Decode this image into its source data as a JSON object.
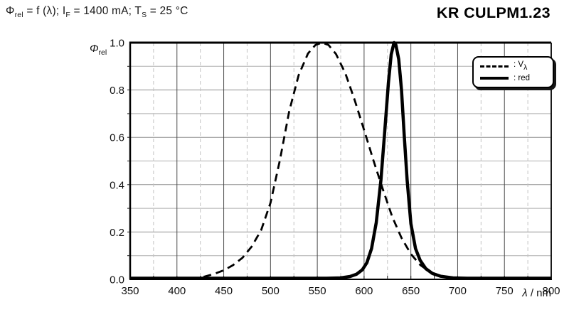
{
  "header": {
    "phi": "Φ",
    "phi_sub": "rel",
    "seg_f": " = f (λ); I",
    "sub_f": "F",
    "seg_if": " = 1400 mA; T",
    "sub_s": "S",
    "seg_ts": " = 25 °C"
  },
  "part_number": "KR CULPM1.23",
  "y_axis": {
    "label_main": "Φ",
    "label_sub": "rel"
  },
  "x_axis": {
    "label_main": "λ",
    "label_rest": " / nm"
  },
  "legend": {
    "vlambda_prefix": ": V",
    "vlambda_sub": "λ",
    "red_label": ": red"
  },
  "colors": {
    "background": "#ffffff",
    "curve": "#000000",
    "border": "#000000",
    "grid_major_vertical": "#4a4a4a",
    "grid_minor_vertical": "#c3c3c3",
    "grid_horizontal": "#9d9d9d",
    "text": "#111111"
  },
  "chart_data": {
    "type": "line",
    "title": "Φ_rel = f (λ); I_F = 1400 mA; T_S = 25 °C",
    "subtitle": "KR CULPM1.23",
    "xlabel": "λ / nm",
    "ylabel": "Φ_rel",
    "xlim": [
      350,
      800
    ],
    "ylim": [
      0,
      1.0
    ],
    "grid": true,
    "legend_position": "top-right",
    "x_major_ticks": [
      350,
      400,
      450,
      500,
      550,
      600,
      650,
      700,
      750,
      800
    ],
    "x_tick_labels": [
      "350",
      "400",
      "450",
      "500",
      "550",
      "600",
      "650",
      "700",
      "750",
      "800"
    ],
    "x_minor_step": 25,
    "y_grid_step": 0.1,
    "y_major_ticks": [
      0,
      0.2,
      0.4,
      0.6,
      0.8,
      1.0
    ],
    "y_tick_labels": [
      "0.0",
      "0.2",
      "0.4",
      "0.6",
      "0.8",
      "1.0"
    ],
    "series": [
      {
        "name": "V_λ",
        "style": "dashed",
        "x": [
          415,
          420,
          430,
          440,
          450,
          460,
          470,
          480,
          490,
          500,
          510,
          520,
          530,
          540,
          548,
          555,
          562,
          570,
          580,
          590,
          600,
          610,
          620,
          630,
          640,
          650,
          660,
          670,
          680,
          690,
          700,
          710,
          720
        ],
        "y": [
          0.002,
          0.004,
          0.012,
          0.023,
          0.038,
          0.06,
          0.091,
          0.139,
          0.208,
          0.323,
          0.503,
          0.71,
          0.862,
          0.954,
          0.99,
          1.0,
          0.99,
          0.952,
          0.87,
          0.757,
          0.631,
          0.503,
          0.381,
          0.265,
          0.175,
          0.107,
          0.061,
          0.032,
          0.017,
          0.008,
          0.004,
          0.002,
          0.001
        ]
      },
      {
        "name": "red",
        "style": "solid",
        "x": [
          350,
          450,
          540,
          560,
          575,
          585,
          592,
          598,
          603,
          608,
          613,
          618,
          622,
          626,
          629,
          632,
          634,
          637,
          640,
          643,
          646,
          650,
          655,
          660,
          666,
          673,
          682,
          695,
          710,
          740,
          800
        ],
        "y": [
          0.0,
          0.0,
          0.001,
          0.002,
          0.006,
          0.012,
          0.022,
          0.04,
          0.07,
          0.13,
          0.24,
          0.42,
          0.62,
          0.83,
          0.95,
          1.0,
          0.99,
          0.93,
          0.8,
          0.6,
          0.42,
          0.235,
          0.13,
          0.08,
          0.045,
          0.025,
          0.013,
          0.006,
          0.003,
          0.001,
          0.001
        ]
      }
    ]
  }
}
